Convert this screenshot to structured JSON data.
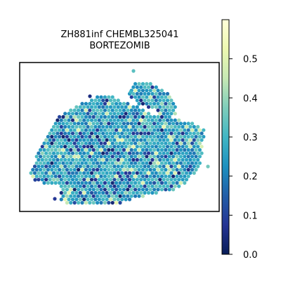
{
  "chart_data": {
    "type": "scatter",
    "title_line1": "ZH881inf CHEMBL325041",
    "title_line2": "BORTEZOMIB",
    "xlabel": "",
    "ylabel": "",
    "colormap": "YlGnBu",
    "colorbar": {
      "ticks": [
        "0.0",
        "0.1",
        "0.2",
        "0.3",
        "0.4",
        "0.5"
      ],
      "tick_values": [
        0.0,
        0.1,
        0.2,
        0.3,
        0.4,
        0.5
      ],
      "range": [
        0.0,
        0.6
      ]
    },
    "colors": {
      "low": "#081d58",
      "mid": "#1d91c0",
      "high": "#ffffd9"
    }
  }
}
